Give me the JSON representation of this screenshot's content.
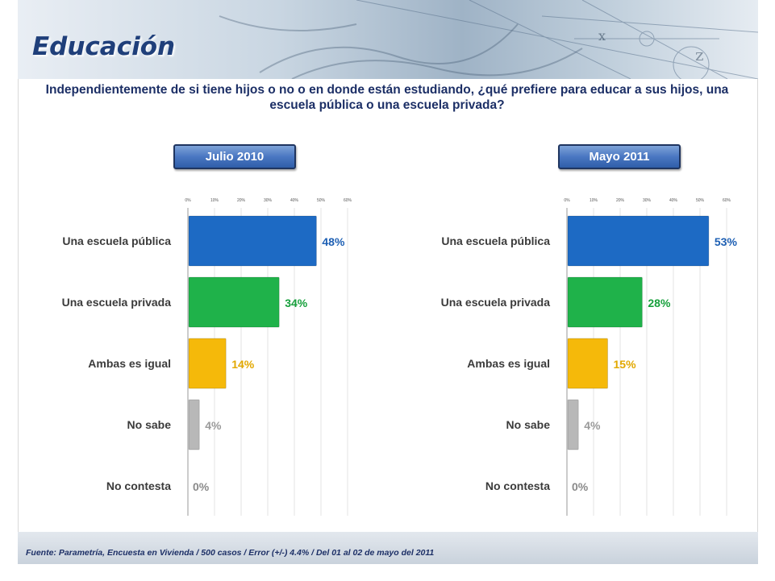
{
  "slide": {
    "title": "Educación",
    "question": "Independientemente de si tiene hijos o no o en donde están estudiando, ¿qué prefiere para educar a sus hijos, una escuela pública o una escuela privada?",
    "source": "Fuente: Parametría, Encuesta en Vivienda / 500 casos / Error (+/-) 4.4% / Del 01 al 02 de mayo del 2011"
  },
  "chart_data": [
    {
      "type": "bar",
      "orientation": "horizontal",
      "title": "Julio 2010",
      "categories": [
        "Una escuela pública",
        "Una escuela privada",
        "Ambas es igual",
        "No sabe",
        "No contesta"
      ],
      "values": [
        48,
        34,
        14,
        4,
        0
      ],
      "value_labels": [
        "48%",
        "34%",
        "14%",
        "4%",
        "0%"
      ],
      "colors": [
        "#1d6ac4",
        "#1fb24a",
        "#f5b90a",
        "#b8b8b8",
        "#b8b8b8"
      ],
      "label_colors": [
        "#1d5fb3",
        "#17a03c",
        "#e2a800",
        "#9a9a9a",
        "#8a8a8a"
      ],
      "xlim": [
        0,
        60
      ],
      "ticks": [
        0,
        10,
        20,
        30,
        40,
        50,
        60
      ],
      "tick_labels": [
        "0%",
        "10%",
        "20%",
        "30%",
        "40%",
        "50%",
        "60%"
      ],
      "grid": true
    },
    {
      "type": "bar",
      "orientation": "horizontal",
      "title": "Mayo 2011",
      "categories": [
        "Una escuela pública",
        "Una escuela privada",
        "Ambas es igual",
        "No sabe",
        "No contesta"
      ],
      "values": [
        53,
        28,
        15,
        4,
        0
      ],
      "value_labels": [
        "53%",
        "28%",
        "15%",
        "4%",
        "0%"
      ],
      "colors": [
        "#1d6ac4",
        "#1fb24a",
        "#f5b90a",
        "#b8b8b8",
        "#b8b8b8"
      ],
      "label_colors": [
        "#1d5fb3",
        "#17a03c",
        "#e2a800",
        "#9a9a9a",
        "#8a8a8a"
      ],
      "xlim": [
        0,
        60
      ],
      "ticks": [
        0,
        10,
        20,
        30,
        40,
        50,
        60
      ],
      "tick_labels": [
        "0%",
        "10%",
        "20%",
        "30%",
        "40%",
        "50%",
        "60%"
      ],
      "grid": true
    }
  ]
}
